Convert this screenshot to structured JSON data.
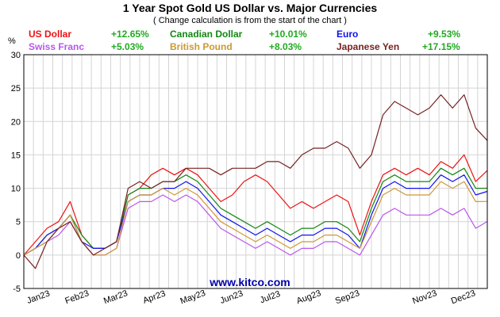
{
  "chart_data": {
    "type": "line",
    "title": "1 Year Spot Gold US Dollar vs. Major Currencies",
    "subtitle": "( Change calculation is from the start of the chart )",
    "ylabel": "%",
    "ylim": [
      -5,
      30
    ],
    "yticks": [
      "30",
      "25",
      "20",
      "15",
      "10",
      "5",
      "0",
      "-5"
    ],
    "grid": true,
    "x_months": [
      "Jan23",
      "Feb23",
      "Mar23",
      "Apr23",
      "May23",
      "Jun23",
      "Jul23",
      "Aug23",
      "Sep23",
      "Nov23",
      "Dec23"
    ],
    "x_month_positions": [
      0.4,
      1.4,
      2.4,
      3.4,
      4.4,
      5.4,
      6.4,
      7.4,
      8.4,
      10.4,
      11.4
    ],
    "x": [
      0,
      0.3,
      0.6,
      0.9,
      1.2,
      1.5,
      1.8,
      2.1,
      2.4,
      2.7,
      3.0,
      3.3,
      3.6,
      3.9,
      4.2,
      4.5,
      4.8,
      5.1,
      5.4,
      5.7,
      6.0,
      6.3,
      6.6,
      6.9,
      7.2,
      7.5,
      7.8,
      8.1,
      8.4,
      8.7,
      9.0,
      9.3,
      9.6,
      9.9,
      10.2,
      10.5,
      10.8,
      11.1,
      11.4,
      11.7,
      12.0
    ],
    "series": [
      {
        "name": "US Dollar",
        "change": "+12.65%",
        "color": "#ee1111",
        "values": [
          0,
          2,
          4,
          5,
          8,
          3,
          1,
          1,
          2,
          9,
          10,
          12,
          13,
          12,
          13,
          12,
          10,
          8,
          9,
          11,
          12,
          11,
          9,
          7,
          8,
          7,
          8,
          9,
          8,
          3,
          8,
          12,
          13,
          12,
          13,
          12,
          14,
          13,
          15,
          11,
          12.65
        ]
      },
      {
        "name": "Canadian Dollar",
        "change": "+10.01%",
        "color": "#118811",
        "values": [
          0,
          1,
          3,
          4,
          6,
          3,
          1,
          1,
          2,
          9,
          10,
          10,
          11,
          11,
          12,
          11,
          9,
          7,
          6,
          5,
          4,
          5,
          4,
          3,
          4,
          4,
          5,
          5,
          4,
          2,
          7,
          11,
          12,
          11,
          11,
          11,
          13,
          12,
          13,
          10,
          10.01
        ]
      },
      {
        "name": "Euro",
        "change": "+9.53%",
        "color": "#1111ee",
        "values": [
          0,
          1,
          3,
          4,
          6,
          2,
          1,
          1,
          2,
          8,
          9,
          9,
          10,
          10,
          11,
          10,
          8,
          6,
          5,
          4,
          3,
          4,
          3,
          2,
          3,
          3,
          4,
          4,
          3,
          1,
          6,
          10,
          11,
          10,
          10,
          10,
          12,
          11,
          12,
          9,
          9.53
        ]
      },
      {
        "name": "Swiss Franc",
        "change": "+5.03%",
        "color": "#bb55ee",
        "values": [
          0,
          1,
          2,
          3,
          5,
          2,
          0,
          0,
          1,
          7,
          8,
          8,
          9,
          8,
          9,
          8,
          6,
          4,
          3,
          2,
          1,
          2,
          1,
          0,
          1,
          1,
          2,
          2,
          1,
          0,
          3,
          6,
          7,
          6,
          6,
          6,
          7,
          6,
          7,
          4,
          5.03
        ]
      },
      {
        "name": "British Pound",
        "change": "+8.03%",
        "color": "#cc9933",
        "values": [
          0,
          1,
          2,
          4,
          6,
          2,
          0,
          0,
          1,
          8,
          9,
          9,
          10,
          9,
          10,
          9,
          7,
          5,
          4,
          3,
          2,
          3,
          2,
          1,
          2,
          2,
          3,
          3,
          2,
          1,
          5,
          9,
          10,
          9,
          9,
          9,
          11,
          10,
          11,
          8,
          8.03
        ]
      },
      {
        "name": "Japanese Yen",
        "change": "+17.15%",
        "color": "#772222",
        "values": [
          0,
          -2,
          2,
          4,
          5,
          2,
          0,
          1,
          2,
          10,
          11,
          10,
          11,
          11,
          13,
          13,
          13,
          12,
          13,
          13,
          13,
          14,
          14,
          13,
          15,
          16,
          16,
          17,
          16,
          13,
          15,
          21,
          23,
          22,
          21,
          22,
          24,
          22,
          24,
          19,
          17.15
        ]
      }
    ]
  },
  "watermark": "www.kitco.com",
  "colors": {
    "grid": "#d4d4d4",
    "watermark": "#0000aa",
    "change_positive": "#22aa22"
  }
}
